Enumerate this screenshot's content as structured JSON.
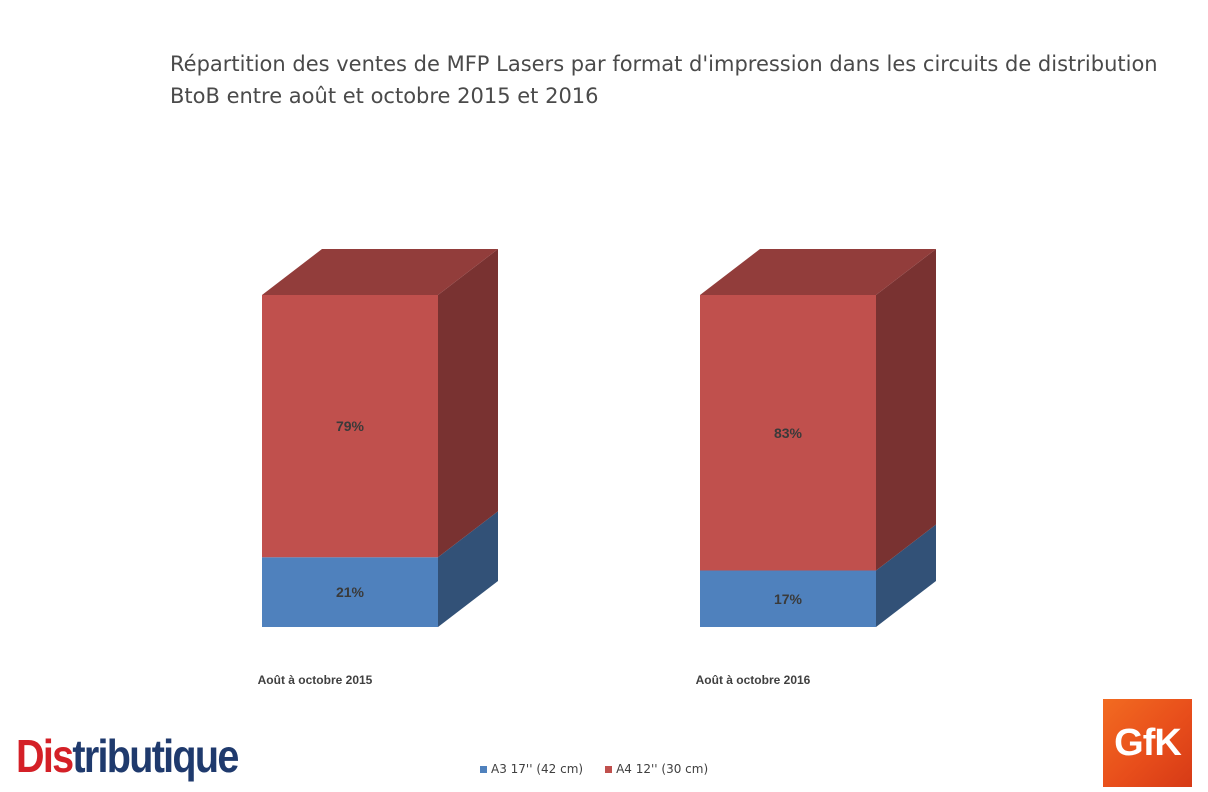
{
  "title": "Répartition des ventes de MFP Lasers par format d'impression dans les circuits de distribution BtoB entre août et octobre 2015 et 2016",
  "chart_data": {
    "type": "bar",
    "stacked": true,
    "style": "3d-stacked-percent",
    "categories": [
      "Août à octobre 2015",
      "Août à octobre 2016"
    ],
    "series": [
      {
        "name": "A3 17'' (42 cm)",
        "values": [
          21,
          17
        ],
        "labels": [
          "21%",
          "17%"
        ],
        "color": "#4f81bd"
      },
      {
        "name": "A4 12'' (30 cm)",
        "values": [
          79,
          83
        ],
        "labels": [
          "79%",
          "83%"
        ],
        "color": "#c0504d"
      }
    ],
    "ylim": [
      0,
      100
    ],
    "grid": false,
    "legend_position": "bottom"
  },
  "logos": {
    "brand": {
      "text_start": "Dis",
      "text_end": "tributique",
      "accent_color": "#d42027",
      "main_color": "#1f3a6d"
    },
    "gfk": {
      "text": "GfK",
      "color": "#f26b21"
    }
  }
}
